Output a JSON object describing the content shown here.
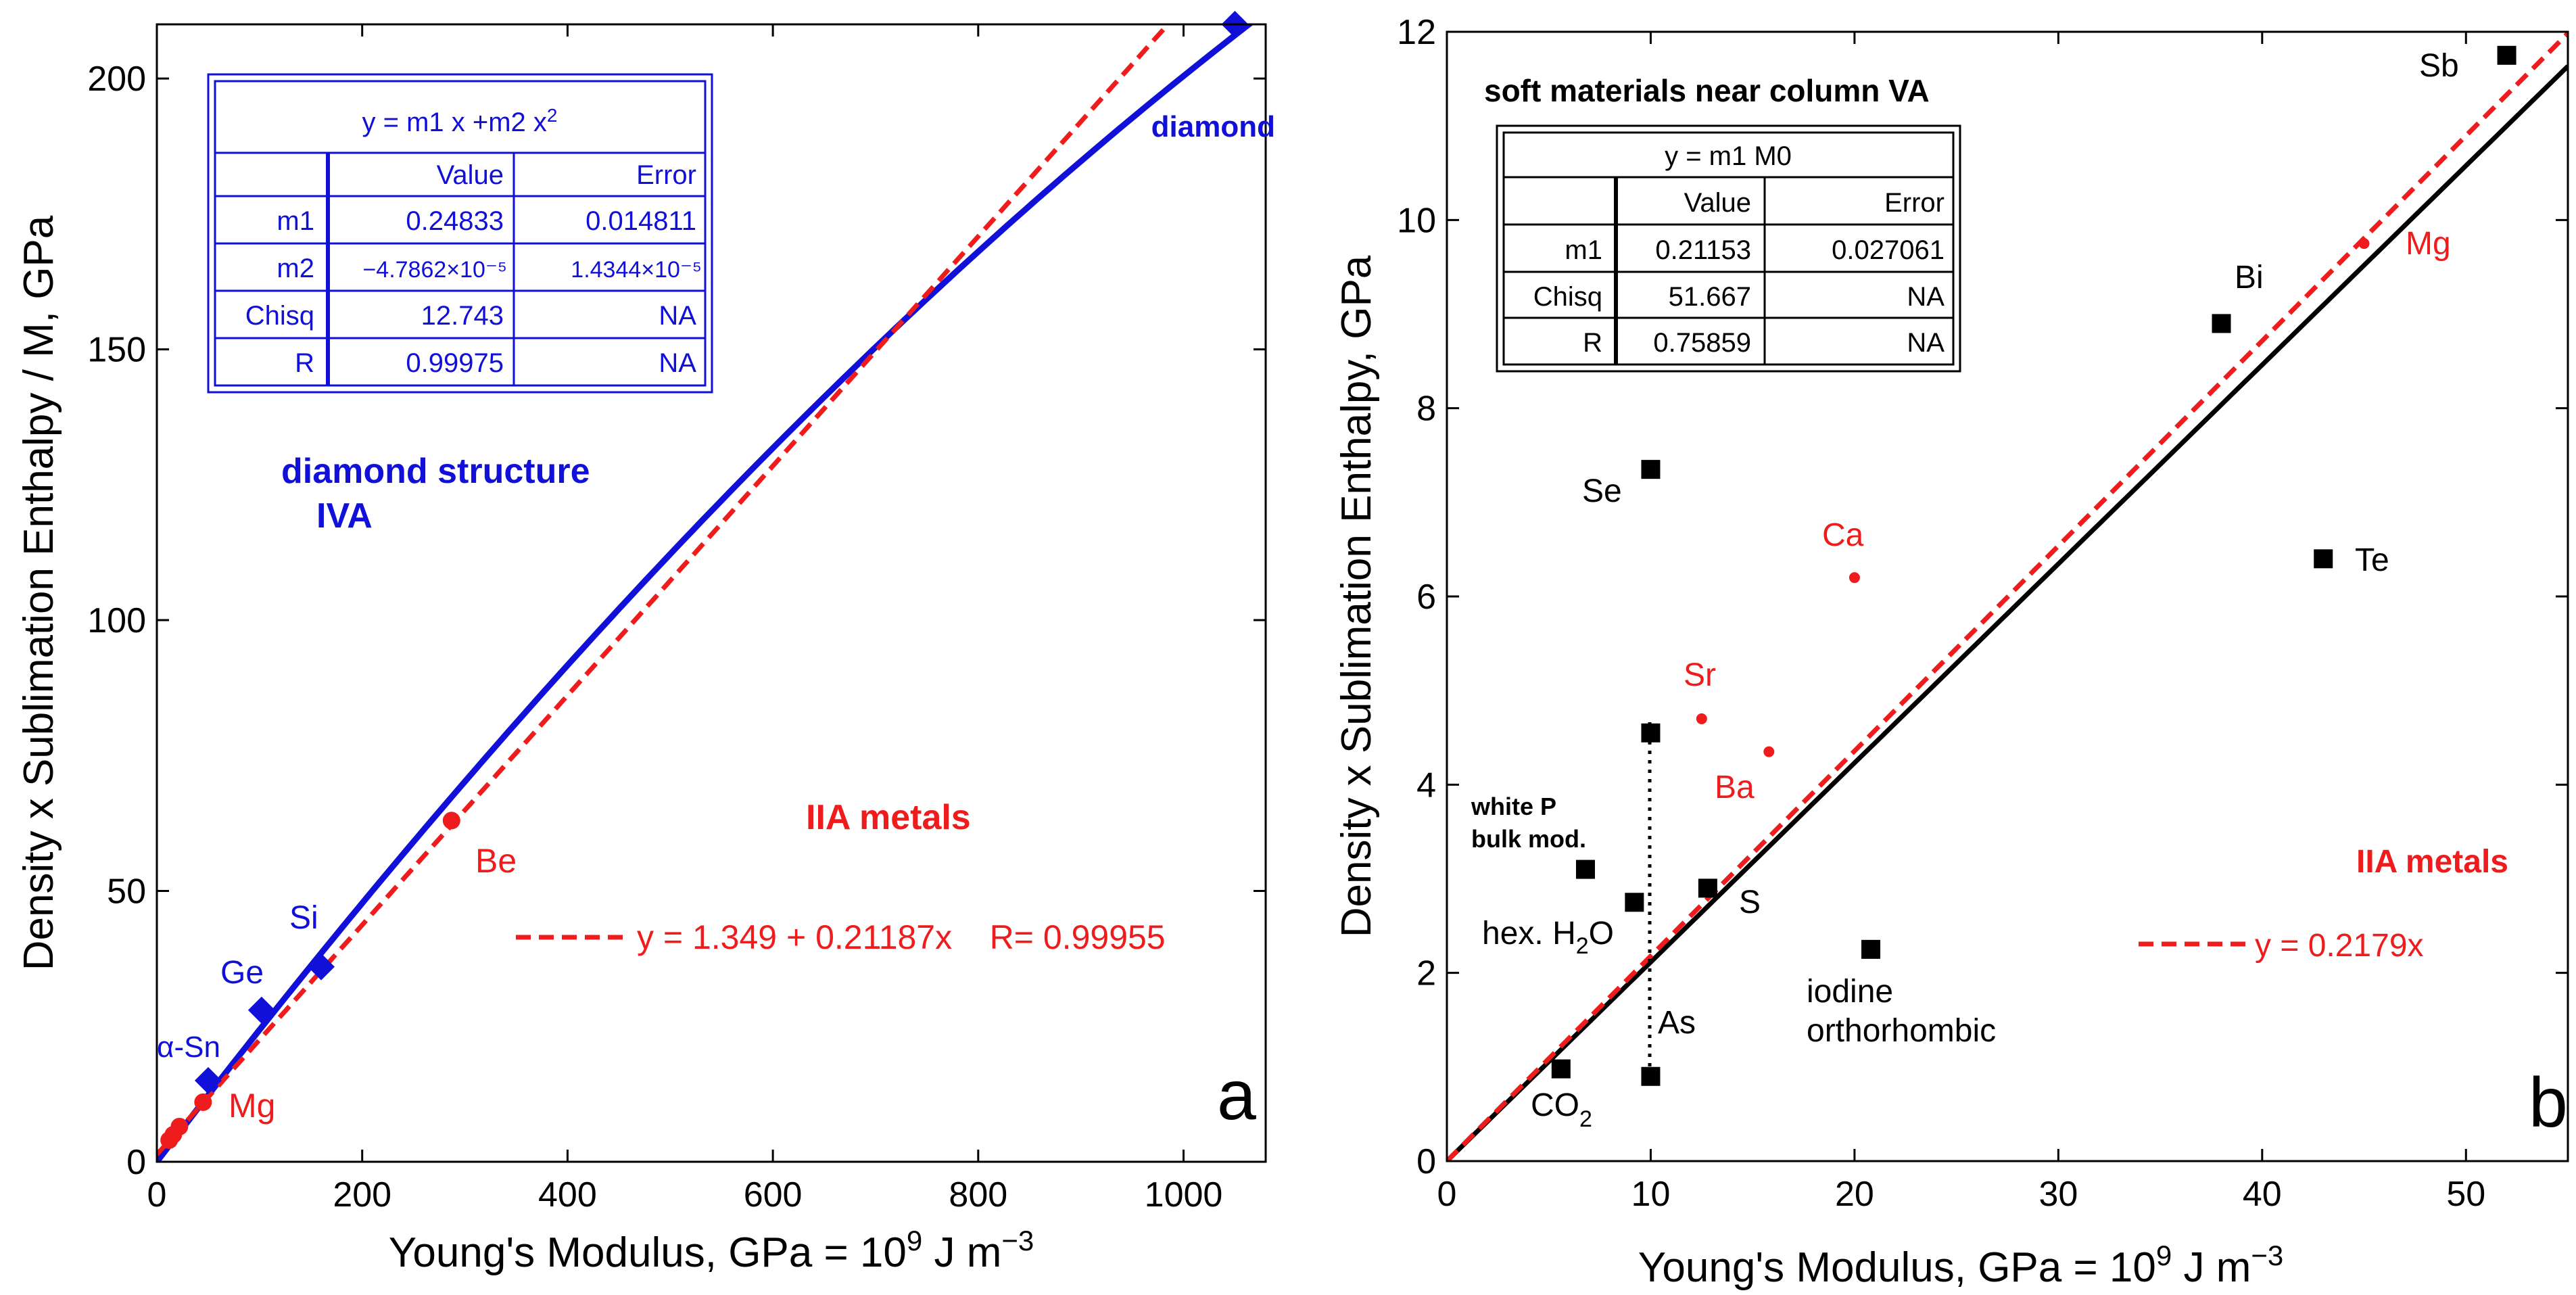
{
  "colors": {
    "blue": "#1010d8",
    "red": "#ee1c1c",
    "black": "#000000"
  },
  "chart_data": [
    {
      "type": "scatter",
      "panel_letter": "a",
      "xlabel": {
        "main": "Young's Modulus, GPa = 10",
        "sup1": "9",
        "mid": " J m",
        "sup2": "−3"
      },
      "ylabel": "Density x Sublimation Enthalpy / M, GPa",
      "xlim": [
        0,
        1080
      ],
      "ylim": [
        0,
        210
      ],
      "xticks": [
        0,
        200,
        400,
        600,
        800,
        1000
      ],
      "yticks": [
        0,
        50,
        100,
        150,
        200
      ],
      "series": [
        {
          "name": "diamond structure IVA",
          "color": "blue",
          "marker": "diamond",
          "points": [
            {
              "label": "diamond",
              "x": 1050,
              "y": 210
            },
            {
              "label": "Si",
              "x": 160,
              "y": 36
            },
            {
              "label": "Ge",
              "x": 102,
              "y": 28
            },
            {
              "label": "α-Sn",
              "x": 50,
              "y": 15
            }
          ]
        },
        {
          "name": "IIA metals",
          "color": "red",
          "marker": "circle",
          "points": [
            {
              "label": "Be",
              "x": 287,
              "y": 63
            },
            {
              "label": "Mg",
              "x": 45,
              "y": 11
            },
            {
              "label": "",
              "x": 22,
              "y": 6.5
            },
            {
              "label": "",
              "x": 16,
              "y": 5
            },
            {
              "label": "",
              "x": 12,
              "y": 4
            }
          ]
        }
      ],
      "fits": [
        {
          "color": "blue",
          "style": "solid",
          "model": "quadratic",
          "m1": 0.24833,
          "m2": -4.7862e-05
        },
        {
          "color": "red",
          "style": "dashed",
          "model": "linear",
          "intercept": 1.349,
          "slope": 0.21187
        }
      ],
      "labels": {
        "diamond": "diamond",
        "si": "Si",
        "ge": "Ge",
        "asn": "α-Sn",
        "be": "Be",
        "mg": "Mg",
        "group_line1": "diamond structure",
        "group_line2": "IVA",
        "iia": "IIA metals"
      },
      "legend_text": "y = 1.349 + 0.21187x    R= 0.99955",
      "fit_table": {
        "eq_main": "y = m1 x +m2 x",
        "eq_sup": "2",
        "header": [
          "",
          "Value",
          "Error"
        ],
        "rows": [
          [
            "m1",
            "0.24833",
            "0.014811"
          ],
          [
            "m2",
            "−4.7862×10⁻⁵",
            "1.4344×10⁻⁵"
          ],
          [
            "Chisq",
            "12.743",
            "NA"
          ],
          [
            "R",
            "0.99975",
            "NA"
          ]
        ]
      }
    },
    {
      "type": "scatter",
      "panel_letter": "b",
      "xlabel": {
        "main": "Young's Modulus, GPa = 10",
        "sup1": "9",
        "mid": " J m",
        "sup2": "−3"
      },
      "ylabel": "Density x Sublimation Enthalpy, GPa",
      "title": "soft materials near column VA",
      "xlim": [
        0,
        55
      ],
      "ylim": [
        0,
        12
      ],
      "xticks": [
        0,
        10,
        20,
        30,
        40,
        50
      ],
      "yticks": [
        0,
        2,
        4,
        6,
        8,
        10,
        12
      ],
      "series": [
        {
          "name": "soft materials",
          "color": "black",
          "marker": "square",
          "points": [
            {
              "label": "Sb",
              "x": 52,
              "y": 11.75
            },
            {
              "label": "Bi",
              "x": 38,
              "y": 8.9
            },
            {
              "label": "Se",
              "x": 10,
              "y": 7.35
            },
            {
              "label": "Te",
              "x": 43,
              "y": 6.4
            },
            {
              "label": "As",
              "x": 10,
              "y": 4.55
            },
            {
              "label": "white P bulk mod.",
              "x": 6.8,
              "y": 3.1
            },
            {
              "label": "hex. H2O",
              "x": 9.2,
              "y": 2.75
            },
            {
              "label": "S",
              "x": 12.8,
              "y": 2.9
            },
            {
              "label": "iodine orthorhombic",
              "x": 20.8,
              "y": 2.25
            },
            {
              "label": "CO2",
              "x": 5.6,
              "y": 0.98
            },
            {
              "label": "As",
              "x": 10,
              "y": 0.9
            }
          ]
        },
        {
          "name": "IIA metals",
          "color": "red",
          "marker": "circle",
          "points": [
            {
              "label": "Mg",
              "x": 45,
              "y": 9.75
            },
            {
              "label": "Ca",
              "x": 20,
              "y": 6.2
            },
            {
              "label": "Sr",
              "x": 12.5,
              "y": 4.7
            },
            {
              "label": "Ba",
              "x": 15.8,
              "y": 4.35
            }
          ]
        }
      ],
      "fits": [
        {
          "color": "black",
          "style": "solid",
          "model": "linear",
          "intercept": 0,
          "slope": 0.21153
        },
        {
          "color": "red",
          "style": "dashed",
          "model": "linear",
          "intercept": 0,
          "slope": 0.2179
        }
      ],
      "labels": {
        "sb": "Sb",
        "bi": "Bi",
        "mg": "Mg",
        "se": "Se",
        "ca": "Ca",
        "te": "Te",
        "sr": "Sr",
        "ba": "Ba",
        "white_p1": "white P",
        "white_p2": "bulk mod.",
        "h2o_pre": "hex. H",
        "h2o_sub": "2",
        "h2o_post": "O",
        "s": "S",
        "as": "As",
        "iodine1": "iodine",
        "iodine2": "orthorhombic",
        "co2_pre": "CO",
        "co2_sub": "2",
        "iia": "IIA metals"
      },
      "legend_text": "y = 0.2179x",
      "fit_table": {
        "eq": "y = m1 M0",
        "header": [
          "",
          "Value",
          "Error"
        ],
        "rows": [
          [
            "m1",
            "0.21153",
            "0.027061"
          ],
          [
            "Chisq",
            "51.667",
            "NA"
          ],
          [
            "R",
            "0.75859",
            "NA"
          ]
        ]
      }
    }
  ]
}
